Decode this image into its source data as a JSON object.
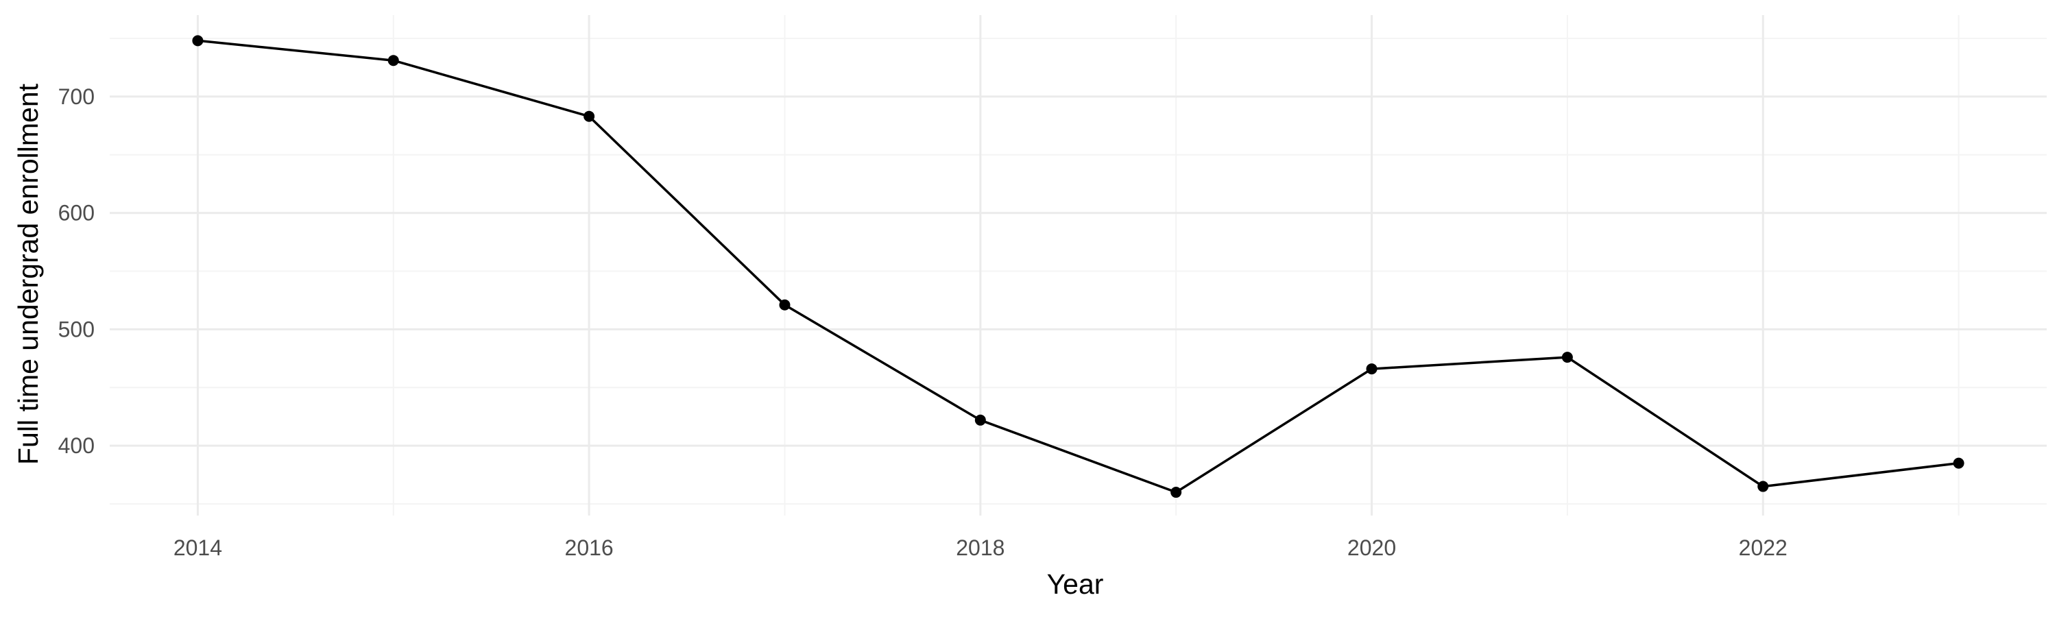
{
  "chart_data": {
    "type": "line",
    "title": "",
    "xlabel": "Year",
    "ylabel": "Full time undergrad enrollment",
    "x": [
      2014,
      2015,
      2016,
      2017,
      2018,
      2019,
      2020,
      2021,
      2022,
      2023
    ],
    "series": [
      {
        "values": [
          748,
          731,
          683,
          521,
          422,
          360,
          466,
          476,
          365,
          385
        ]
      }
    ],
    "xticks": [
      2014,
      2016,
      2018,
      2020,
      2022
    ],
    "xtick_labels": [
      "2014",
      "2016",
      "2018",
      "2020",
      "2022"
    ],
    "yticks": [
      400,
      500,
      600,
      700
    ],
    "ytick_labels": [
      "400",
      "500",
      "600",
      "700"
    ],
    "xlim": [
      2013.55,
      2023.45
    ],
    "ylim": [
      340,
      770
    ],
    "grid": true,
    "legend": "none",
    "colors": {
      "line": "#000000",
      "grid": "#ebebeb",
      "tick_text": "#4d4d4d"
    }
  }
}
